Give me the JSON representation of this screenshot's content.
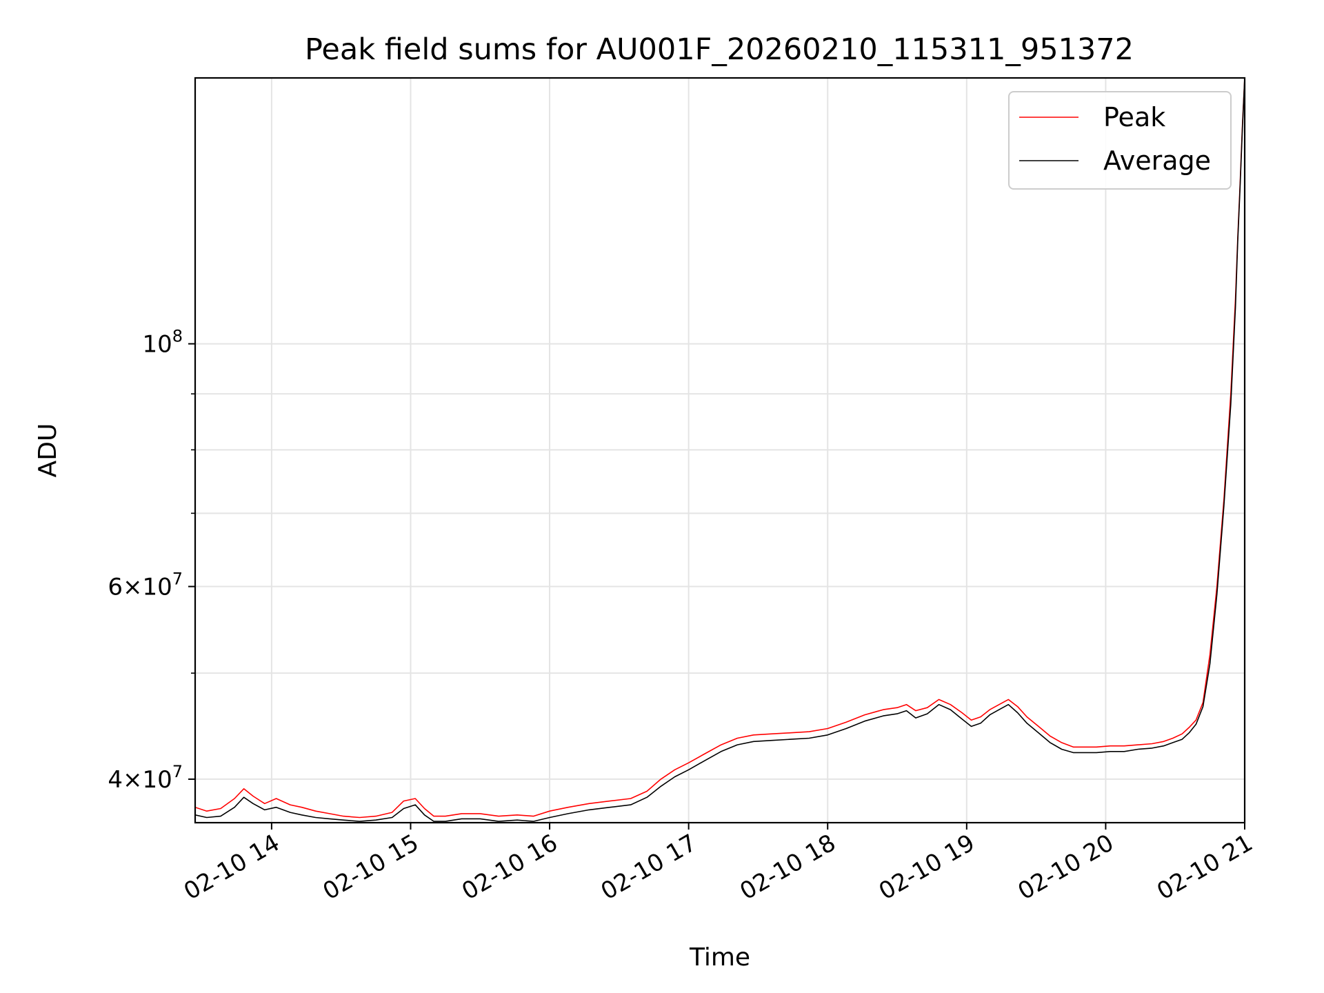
{
  "chart_data": {
    "type": "line",
    "title": "Peak field sums for AU001F_20260210_115311_951372",
    "xlabel": "Time",
    "ylabel": "ADU",
    "y_scale": "log",
    "ylim": [
      36500000,
      175000000
    ],
    "xlim": [
      "2026-02-10 13:27",
      "2026-02-10 21:00"
    ],
    "x_tick_labels": [
      "02-10 14",
      "02-10 15",
      "02-10 16",
      "02-10 17",
      "02-10 18",
      "02-10 19",
      "02-10 20",
      "02-10 21"
    ],
    "y_tick_labels": [
      {
        "value": 40000000,
        "mantissa": "4",
        "exponent": "7"
      },
      {
        "value": 60000000,
        "mantissa": "6",
        "exponent": "7"
      },
      {
        "value": 100000000,
        "mantissa": "",
        "exponent": "8"
      }
    ],
    "y_minor_ticks": [
      50000000,
      70000000,
      80000000,
      90000000
    ],
    "grid": true,
    "legend_position": "top-right",
    "series": [
      {
        "name": "Peak",
        "color": "#ff0000",
        "x": [
          "2026-02-10 13:27",
          "2026-02-10 13:32",
          "2026-02-10 13:38",
          "2026-02-10 13:44",
          "2026-02-10 13:48",
          "2026-02-10 13:52",
          "2026-02-10 13:57",
          "2026-02-10 14:02",
          "2026-02-10 14:08",
          "2026-02-10 14:13",
          "2026-02-10 14:19",
          "2026-02-10 14:25",
          "2026-02-10 14:31",
          "2026-02-10 14:38",
          "2026-02-10 14:45",
          "2026-02-10 14:52",
          "2026-02-10 14:57",
          "2026-02-10 15:02",
          "2026-02-10 15:06",
          "2026-02-10 15:10",
          "2026-02-10 15:15",
          "2026-02-10 15:22",
          "2026-02-10 15:30",
          "2026-02-10 15:38",
          "2026-02-10 15:46",
          "2026-02-10 15:53",
          "2026-02-10 16:00",
          "2026-02-10 16:08",
          "2026-02-10 16:17",
          "2026-02-10 16:26",
          "2026-02-10 16:35",
          "2026-02-10 16:42",
          "2026-02-10 16:48",
          "2026-02-10 16:54",
          "2026-02-10 17:00",
          "2026-02-10 17:07",
          "2026-02-10 17:14",
          "2026-02-10 17:21",
          "2026-02-10 17:28",
          "2026-02-10 17:36",
          "2026-02-10 17:44",
          "2026-02-10 17:52",
          "2026-02-10 18:00",
          "2026-02-10 18:08",
          "2026-02-10 18:16",
          "2026-02-10 18:24",
          "2026-02-10 18:30",
          "2026-02-10 18:34",
          "2026-02-10 18:38",
          "2026-02-10 18:43",
          "2026-02-10 18:48",
          "2026-02-10 18:53",
          "2026-02-10 18:58",
          "2026-02-10 19:02",
          "2026-02-10 19:06",
          "2026-02-10 19:10",
          "2026-02-10 19:14",
          "2026-02-10 19:18",
          "2026-02-10 19:22",
          "2026-02-10 19:26",
          "2026-02-10 19:31",
          "2026-02-10 19:36",
          "2026-02-10 19:41",
          "2026-02-10 19:46",
          "2026-02-10 19:51",
          "2026-02-10 19:56",
          "2026-02-10 20:02",
          "2026-02-10 20:08",
          "2026-02-10 20:14",
          "2026-02-10 20:20",
          "2026-02-10 20:25",
          "2026-02-10 20:29",
          "2026-02-10 20:33",
          "2026-02-10 20:36",
          "2026-02-10 20:39",
          "2026-02-10 20:42",
          "2026-02-10 20:45",
          "2026-02-10 20:48",
          "2026-02-10 20:51",
          "2026-02-10 20:54",
          "2026-02-10 20:56",
          "2026-02-10 20:57",
          "2026-02-10 20:58",
          "2026-02-10 20:59",
          "2026-02-10 21:00"
        ],
        "y": [
          37700000,
          37400000,
          37600000,
          38400000,
          39200000,
          38600000,
          38000000,
          38400000,
          37900000,
          37700000,
          37400000,
          37200000,
          37000000,
          36900000,
          37000000,
          37300000,
          38200000,
          38400000,
          37600000,
          37000000,
          37000000,
          37200000,
          37200000,
          37000000,
          37100000,
          37000000,
          37400000,
          37700000,
          38000000,
          38200000,
          38400000,
          39000000,
          40000000,
          40800000,
          41400000,
          42200000,
          43000000,
          43600000,
          43900000,
          44000000,
          44100000,
          44200000,
          44500000,
          45100000,
          45800000,
          46300000,
          46500000,
          46800000,
          46200000,
          46500000,
          47300000,
          46800000,
          46000000,
          45300000,
          45600000,
          46300000,
          46800000,
          47300000,
          46600000,
          45600000,
          44700000,
          43800000,
          43200000,
          42800000,
          42800000,
          42800000,
          42900000,
          42900000,
          43000000,
          43100000,
          43300000,
          43600000,
          44000000,
          44600000,
          45300000,
          47000000,
          52000000,
          60000000,
          72000000,
          90000000,
          110000000,
          125000000,
          140000000,
          158000000,
          175000000
        ]
      },
      {
        "name": "Average",
        "color": "#000000",
        "x": [
          "2026-02-10 13:27",
          "2026-02-10 13:32",
          "2026-02-10 13:38",
          "2026-02-10 13:44",
          "2026-02-10 13:48",
          "2026-02-10 13:52",
          "2026-02-10 13:57",
          "2026-02-10 14:02",
          "2026-02-10 14:08",
          "2026-02-10 14:13",
          "2026-02-10 14:19",
          "2026-02-10 14:25",
          "2026-02-10 14:31",
          "2026-02-10 14:38",
          "2026-02-10 14:45",
          "2026-02-10 14:52",
          "2026-02-10 14:57",
          "2026-02-10 15:02",
          "2026-02-10 15:06",
          "2026-02-10 15:10",
          "2026-02-10 15:15",
          "2026-02-10 15:22",
          "2026-02-10 15:30",
          "2026-02-10 15:38",
          "2026-02-10 15:46",
          "2026-02-10 15:53",
          "2026-02-10 16:00",
          "2026-02-10 16:08",
          "2026-02-10 16:17",
          "2026-02-10 16:26",
          "2026-02-10 16:35",
          "2026-02-10 16:42",
          "2026-02-10 16:48",
          "2026-02-10 16:54",
          "2026-02-10 17:00",
          "2026-02-10 17:07",
          "2026-02-10 17:14",
          "2026-02-10 17:21",
          "2026-02-10 17:28",
          "2026-02-10 17:36",
          "2026-02-10 17:44",
          "2026-02-10 17:52",
          "2026-02-10 18:00",
          "2026-02-10 18:08",
          "2026-02-10 18:16",
          "2026-02-10 18:24",
          "2026-02-10 18:30",
          "2026-02-10 18:34",
          "2026-02-10 18:38",
          "2026-02-10 18:43",
          "2026-02-10 18:48",
          "2026-02-10 18:53",
          "2026-02-10 18:58",
          "2026-02-10 19:02",
          "2026-02-10 19:06",
          "2026-02-10 19:10",
          "2026-02-10 19:14",
          "2026-02-10 19:18",
          "2026-02-10 19:22",
          "2026-02-10 19:26",
          "2026-02-10 19:31",
          "2026-02-10 19:36",
          "2026-02-10 19:41",
          "2026-02-10 19:46",
          "2026-02-10 19:51",
          "2026-02-10 19:56",
          "2026-02-10 20:02",
          "2026-02-10 20:08",
          "2026-02-10 20:14",
          "2026-02-10 20:20",
          "2026-02-10 20:25",
          "2026-02-10 20:29",
          "2026-02-10 20:33",
          "2026-02-10 20:36",
          "2026-02-10 20:39",
          "2026-02-10 20:42",
          "2026-02-10 20:45",
          "2026-02-10 20:48",
          "2026-02-10 20:51",
          "2026-02-10 20:54",
          "2026-02-10 20:56",
          "2026-02-10 20:57",
          "2026-02-10 20:58",
          "2026-02-10 20:59",
          "2026-02-10 21:00"
        ],
        "y": [
          37100000,
          36900000,
          37000000,
          37700000,
          38500000,
          38000000,
          37500000,
          37700000,
          37300000,
          37100000,
          36900000,
          36800000,
          36700000,
          36600000,
          36700000,
          36900000,
          37600000,
          37900000,
          37100000,
          36600000,
          36600000,
          36800000,
          36800000,
          36600000,
          36700000,
          36600000,
          36900000,
          37200000,
          37500000,
          37700000,
          37900000,
          38500000,
          39400000,
          40200000,
          40800000,
          41600000,
          42400000,
          43000000,
          43300000,
          43400000,
          43500000,
          43600000,
          43900000,
          44500000,
          45200000,
          45700000,
          45900000,
          46200000,
          45500000,
          45900000,
          46800000,
          46300000,
          45400000,
          44700000,
          45000000,
          45800000,
          46300000,
          46800000,
          46000000,
          45000000,
          44100000,
          43200000,
          42600000,
          42300000,
          42300000,
          42300000,
          42400000,
          42400000,
          42600000,
          42700000,
          42900000,
          43200000,
          43500000,
          44100000,
          44900000,
          46600000,
          51000000,
          59000000,
          71000000,
          88000000,
          108000000,
          124000000,
          139000000,
          157000000,
          175000000
        ]
      }
    ]
  }
}
